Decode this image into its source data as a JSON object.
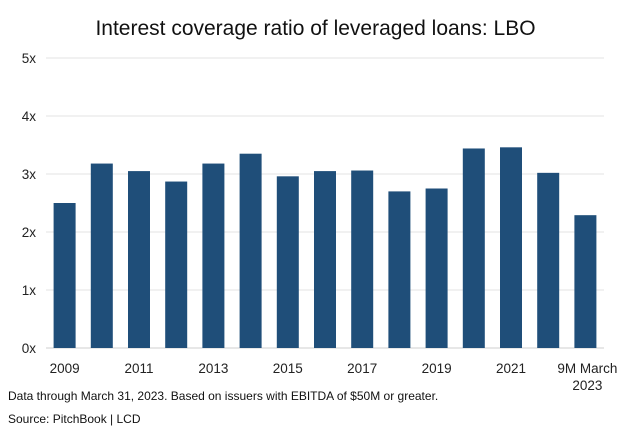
{
  "chart_data": {
    "type": "bar",
    "title": "Interest coverage ratio of leveraged loans: LBO",
    "categories": [
      "2009",
      "2010",
      "2011",
      "2012",
      "2013",
      "2014",
      "2015",
      "2016",
      "2017",
      "2018",
      "2019",
      "2020",
      "2021",
      "2022",
      "9M March 2023"
    ],
    "x_tick_labels": [
      "2009",
      "",
      "2011",
      "",
      "2013",
      "",
      "2015",
      "",
      "2017",
      "",
      "2019",
      "",
      "2021",
      "",
      "9M March 2023"
    ],
    "values": [
      2.5,
      3.18,
      3.05,
      2.87,
      3.18,
      3.35,
      2.96,
      3.05,
      3.06,
      2.7,
      2.75,
      3.44,
      3.46,
      3.02,
      2.29
    ],
    "y_ticks": [
      0,
      1,
      2,
      3,
      4,
      5
    ],
    "y_tick_labels": [
      "0x",
      "1x",
      "2x",
      "3x",
      "4x",
      "5x"
    ],
    "ylim": [
      0,
      5
    ],
    "xlabel": "",
    "ylabel": "",
    "grid": true,
    "legend": "none",
    "bar_color": "#1f4e79",
    "grid_color": "#e3e3e3"
  },
  "footnote": "Data through March 31, 2023. Based on issuers with EBITDA of $50M or greater.",
  "source": "Source: PitchBook | LCD"
}
